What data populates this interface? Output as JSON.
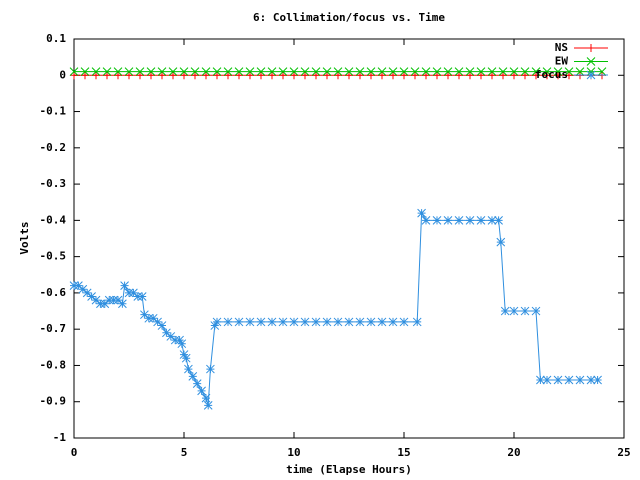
{
  "chart_data": {
    "type": "line",
    "title": "6: Collimation/focus vs. Time",
    "x_label": "time (Elapse Hours)",
    "y_label": "Volts",
    "xlim": [
      0,
      25
    ],
    "xticks": [
      0,
      5,
      10,
      15,
      20,
      25
    ],
    "ylim": [
      -1,
      0.1
    ],
    "yticks": [
      -1,
      -0.9,
      -0.8,
      -0.7,
      -0.6,
      -0.5,
      -0.4,
      -0.3,
      -0.2,
      -0.1,
      0,
      0.1
    ],
    "legend": "top-right",
    "series": [
      {
        "name": "NS",
        "color": "#ff0000",
        "marker": "plus",
        "x": [
          0,
          0.5,
          1,
          1.5,
          2,
          2.5,
          3,
          3.5,
          4,
          4.5,
          5,
          5.5,
          6,
          6.5,
          7,
          7.5,
          8,
          8.5,
          9,
          9.5,
          10,
          10.5,
          11,
          11.5,
          12,
          12.5,
          13,
          13.5,
          14,
          14.5,
          15,
          15.5,
          16,
          16.5,
          17,
          17.5,
          18,
          18.5,
          19,
          19.5,
          20,
          20.5,
          21,
          21.5,
          22,
          22.5,
          23,
          23.5,
          24
        ],
        "values": [
          0,
          0,
          0,
          0,
          0,
          0,
          0,
          0,
          0,
          0,
          0,
          0,
          0,
          0,
          0,
          0,
          0,
          0,
          0,
          0,
          0,
          0,
          0,
          0,
          0,
          0,
          0,
          0,
          0,
          0,
          0,
          0,
          0,
          0,
          0,
          0,
          0,
          0,
          0,
          0,
          0,
          0,
          0,
          0,
          0,
          0,
          0,
          0,
          0
        ]
      },
      {
        "name": "EW",
        "color": "#00c000",
        "marker": "cross",
        "x": [
          0,
          0.5,
          1,
          1.5,
          2,
          2.5,
          3,
          3.5,
          4,
          4.5,
          5,
          5.5,
          6,
          6.5,
          7,
          7.5,
          8,
          8.5,
          9,
          9.5,
          10,
          10.5,
          11,
          11.5,
          12,
          12.5,
          13,
          13.5,
          14,
          14.5,
          15,
          15.5,
          16,
          16.5,
          17,
          17.5,
          18,
          18.5,
          19,
          19.5,
          20,
          20.5,
          21,
          21.5,
          22,
          22.5,
          23,
          23.5,
          24
        ],
        "values": [
          0.01,
          0.01,
          0.01,
          0.01,
          0.01,
          0.01,
          0.01,
          0.01,
          0.01,
          0.01,
          0.01,
          0.01,
          0.01,
          0.01,
          0.01,
          0.01,
          0.01,
          0.01,
          0.01,
          0.01,
          0.01,
          0.01,
          0.01,
          0.01,
          0.01,
          0.01,
          0.01,
          0.01,
          0.01,
          0.01,
          0.01,
          0.01,
          0.01,
          0.01,
          0.01,
          0.01,
          0.01,
          0.01,
          0.01,
          0.01,
          0.01,
          0.01,
          0.01,
          0.01,
          0.01,
          0.01,
          0.01,
          0.01,
          0.01
        ]
      },
      {
        "name": "focus",
        "color": "#2f8fdf",
        "marker": "star",
        "x": [
          0,
          0.2,
          0.4,
          0.6,
          0.8,
          1,
          1.2,
          1.4,
          1.6,
          1.8,
          2,
          2.2,
          2.3,
          2.5,
          2.7,
          2.9,
          3.1,
          3.2,
          3.4,
          3.6,
          3.8,
          4,
          4.2,
          4.4,
          4.6,
          4.8,
          4.9,
          5,
          5.1,
          5.2,
          5.4,
          5.6,
          5.8,
          6,
          6.1,
          6.2,
          6.4,
          6.5,
          7,
          7.5,
          8,
          8.5,
          9,
          9.5,
          10,
          10.5,
          11,
          11.5,
          12,
          12.5,
          13,
          13.5,
          14,
          14.5,
          15,
          15.6,
          15.8,
          16,
          16.5,
          17,
          17.5,
          18,
          18.5,
          19,
          19.3,
          19.4,
          19.6,
          20,
          20.5,
          21,
          21.2,
          21.5,
          22,
          22.5,
          23,
          23.5,
          23.8
        ],
        "values": [
          -0.58,
          -0.58,
          -0.59,
          -0.6,
          -0.61,
          -0.62,
          -0.63,
          -0.63,
          -0.62,
          -0.62,
          -0.62,
          -0.63,
          -0.58,
          -0.6,
          -0.6,
          -0.61,
          -0.61,
          -0.66,
          -0.67,
          -0.67,
          -0.68,
          -0.69,
          -0.71,
          -0.72,
          -0.73,
          -0.73,
          -0.74,
          -0.77,
          -0.78,
          -0.81,
          -0.83,
          -0.85,
          -0.87,
          -0.89,
          -0.91,
          -0.81,
          -0.69,
          -0.68,
          -0.68,
          -0.68,
          -0.68,
          -0.68,
          -0.68,
          -0.68,
          -0.68,
          -0.68,
          -0.68,
          -0.68,
          -0.68,
          -0.68,
          -0.68,
          -0.68,
          -0.68,
          -0.68,
          -0.68,
          -0.68,
          -0.38,
          -0.4,
          -0.4,
          -0.4,
          -0.4,
          -0.4,
          -0.4,
          -0.4,
          -0.4,
          -0.46,
          -0.65,
          -0.65,
          -0.65,
          -0.65,
          -0.84,
          -0.84,
          -0.84,
          -0.84,
          -0.84,
          -0.84,
          -0.84
        ]
      }
    ]
  }
}
